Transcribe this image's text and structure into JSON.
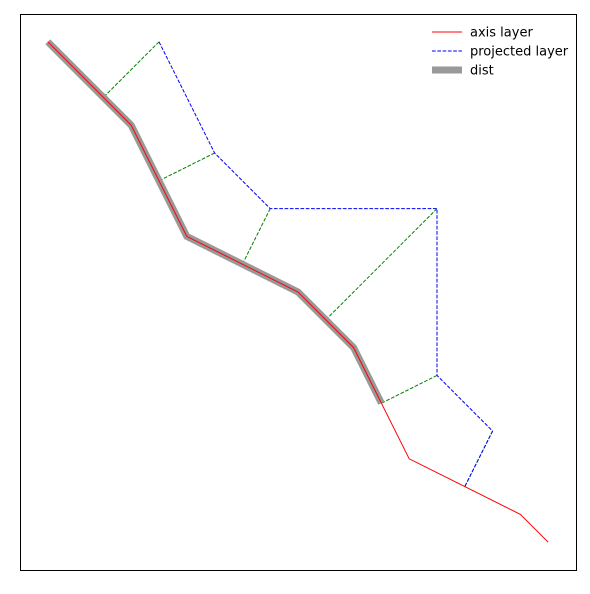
{
  "chart_data": {
    "type": "line",
    "title": "",
    "xlabel": "",
    "ylabel": "",
    "xlim": [
      0,
      10
    ],
    "ylim": [
      0,
      10
    ],
    "grid": false,
    "ticks_visible": false,
    "legend_position": "top-right",
    "series": [
      {
        "name": "axis layer",
        "role": "axis",
        "color": "#ff0000",
        "line_style": "solid",
        "x": [
          0.5,
          2.0,
          3.0,
          5.0,
          6.0,
          6.5,
          7.0,
          8.0,
          9.0,
          9.5
        ],
        "y": [
          9.5,
          8.0,
          6.0,
          5.0,
          4.0,
          3.0,
          2.0,
          1.5,
          1.0,
          0.5
        ]
      },
      {
        "name": "projected layer",
        "role": "projected",
        "color": "#0000ff",
        "line_style": "dashed",
        "x": [
          2.5,
          3.5,
          4.5,
          7.5,
          7.5,
          8.5,
          8.0
        ],
        "y": [
          9.5,
          7.5,
          6.5,
          6.5,
          3.5,
          2.5,
          1.5
        ]
      },
      {
        "name": "dist",
        "role": "dist",
        "color": "#999999",
        "line_style": "thick",
        "x": [
          0.5,
          2.0,
          3.0,
          5.0,
          6.0,
          6.5
        ],
        "y": [
          9.5,
          8.0,
          6.0,
          5.0,
          4.0,
          3.0
        ]
      }
    ],
    "connectors": {
      "color": "#008000",
      "line_style": "dashed",
      "segments": [
        {
          "from": [
            2.5,
            9.5
          ],
          "to": [
            1.5,
            8.5
          ]
        },
        {
          "from": [
            3.5,
            7.5
          ],
          "to": [
            2.5,
            7.0
          ]
        },
        {
          "from": [
            4.5,
            6.5
          ],
          "to": [
            4.0,
            5.5
          ]
        },
        {
          "from": [
            7.5,
            6.5
          ],
          "to": [
            5.5,
            4.5
          ]
        },
        {
          "from": [
            7.5,
            3.5
          ],
          "to": [
            6.5,
            3.0
          ]
        },
        {
          "from": [
            8.5,
            2.5
          ],
          "to": [
            8.0,
            1.5
          ]
        }
      ]
    }
  }
}
